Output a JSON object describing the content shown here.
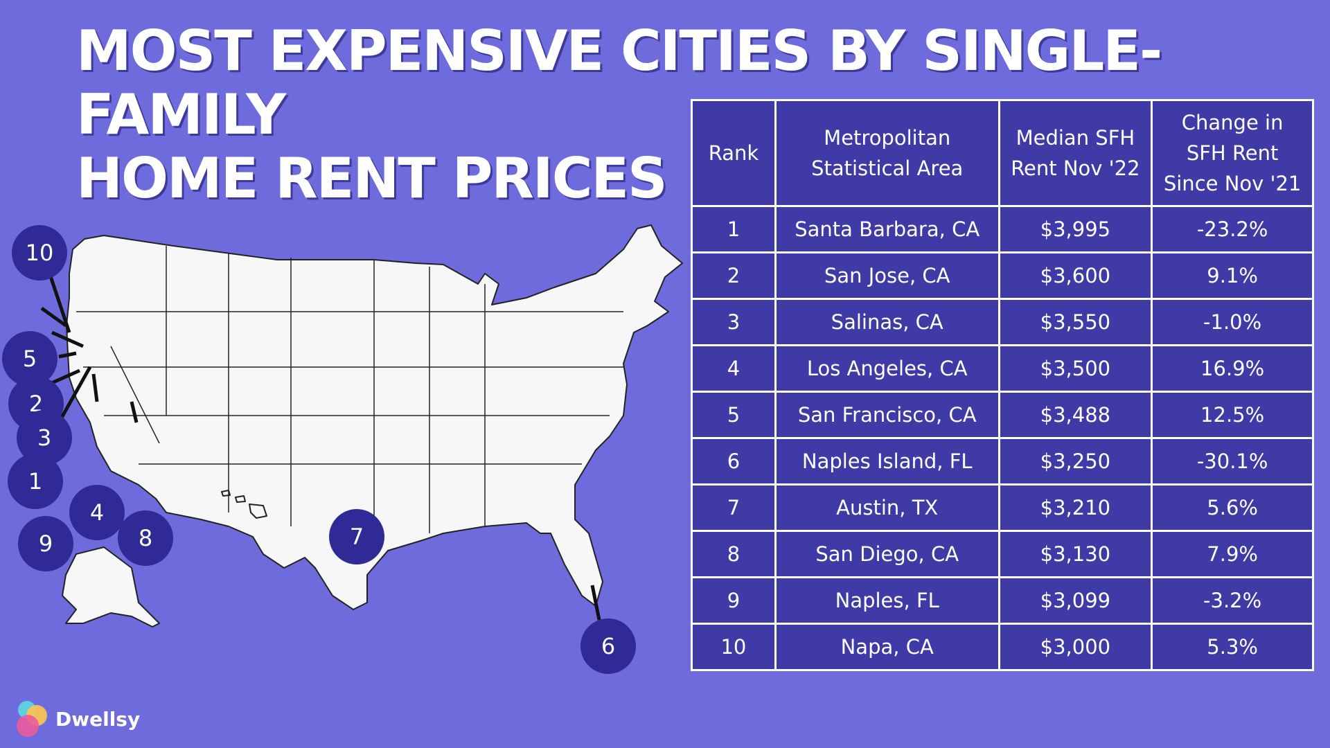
{
  "title": {
    "line1": "MOST EXPENSIVE CITIES BY SINGLE-FAMILY",
    "line2": "HOME RENT PRICES"
  },
  "table": {
    "headers": {
      "rank": "Rank",
      "msa": "Metropolitan\nStatistical Area",
      "rent": "Median SFH\nRent Nov '22",
      "change": "Change in\nSFH Rent\nSince Nov '21"
    },
    "rows": [
      {
        "rank": "1",
        "msa": "Santa Barbara, CA",
        "rent": "$3,995",
        "change": "-23.2%"
      },
      {
        "rank": "2",
        "msa": "San Jose, CA",
        "rent": "$3,600",
        "change": "9.1%"
      },
      {
        "rank": "3",
        "msa": "Salinas, CA",
        "rent": "$3,550",
        "change": "-1.0%"
      },
      {
        "rank": "4",
        "msa": "Los Angeles, CA",
        "rent": "$3,500",
        "change": "16.9%"
      },
      {
        "rank": "5",
        "msa": "San Francisco, CA",
        "rent": "$3,488",
        "change": "12.5%"
      },
      {
        "rank": "6",
        "msa": "Naples Island, FL",
        "rent": "$3,250",
        "change": "-30.1%"
      },
      {
        "rank": "7",
        "msa": "Austin, TX",
        "rent": "$3,210",
        "change": "5.6%"
      },
      {
        "rank": "8",
        "msa": "San Diego, CA",
        "rent": "$3,130",
        "change": "7.9%"
      },
      {
        "rank": "9",
        "msa": "Naples, FL",
        "rent": "$3,099",
        "change": "-3.2%"
      },
      {
        "rank": "10",
        "msa": "Napa, CA",
        "rent": "$3,000",
        "change": "5.3%"
      }
    ]
  },
  "map_markers": {
    "m1": "1",
    "m2": "2",
    "m3": "3",
    "m4": "4",
    "m5": "5",
    "m6": "6",
    "m7": "7",
    "m8": "8",
    "m9": "9",
    "m10": "10"
  },
  "brand": {
    "name": "Dwellsy"
  },
  "colors": {
    "background": "#6e6bdc",
    "table_fill": "#3f3aa6",
    "marker": "#2f2a95",
    "map_fill": "#f7f7f7"
  }
}
